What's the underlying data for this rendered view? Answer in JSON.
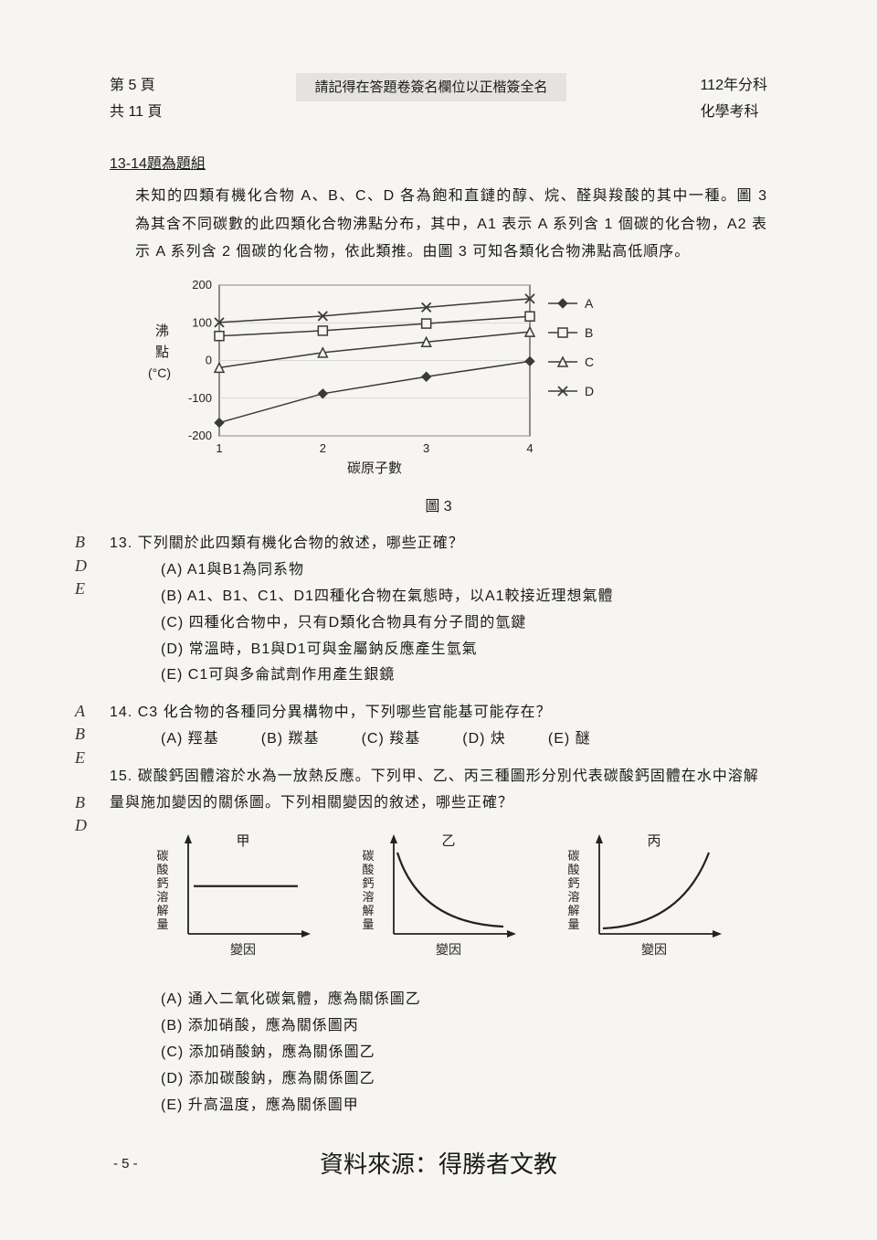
{
  "header": {
    "page_current": "第 5 頁",
    "page_total": "共 11 頁",
    "center": "請記得在答題卷簽名欄位以正楷簽全名",
    "year": "112年分科",
    "subject": "化學考科"
  },
  "grouping": "13-14題為題組",
  "passage": "未知的四類有機化合物 A、B、C、D 各為飽和直鏈的醇、烷、醛與羧酸的其中一種。圖 3 為其含不同碳數的此四類化合物沸點分布，其中，A1 表示 A 系列含 1 個碳的化合物，A2 表示 A 系列含 2 個碳的化合物，依此類推。由圖 3 可知各類化合物沸點高低順序。",
  "chart": {
    "type": "line",
    "title": "圖 3",
    "xlabel": "碳原子數",
    "ylabel_main": "沸",
    "ylabel_sub1": "點",
    "ylabel_sub2": "(°C)",
    "xlim": [
      1,
      4
    ],
    "ylim": [
      -200,
      200
    ],
    "xticks": [
      1,
      2,
      3,
      4
    ],
    "yticks": [
      -200,
      -100,
      0,
      100,
      200
    ],
    "grid_color": "#cfcfcf",
    "axis_color": "#444444",
    "background_color": "transparent",
    "series": {
      "A": {
        "marker": "diamond",
        "color": "#3a3a3a",
        "values": [
          -165,
          -88,
          -43,
          -2
        ]
      },
      "B": {
        "marker": "square",
        "color": "#3a3a3a",
        "values": [
          65,
          79,
          98,
          117
        ]
      },
      "C": {
        "marker": "triangle",
        "color": "#3a3a3a",
        "values": [
          -19,
          21,
          49,
          76
        ]
      },
      "D": {
        "marker": "x",
        "color": "#3a3a3a",
        "values": [
          101,
          118,
          141,
          164
        ]
      }
    },
    "legend": [
      "A",
      "B",
      "C",
      "D"
    ]
  },
  "q13": {
    "annotation": [
      "B",
      "D",
      "E"
    ],
    "num": "13.",
    "text": "下列關於此四類有機化合物的敘述，哪些正確？",
    "opts": [
      "(A) A1與B1為同系物",
      "(B) A1、B1、C1、D1四種化合物在氣態時，以A1較接近理想氣體",
      "(C) 四種化合物中，只有D類化合物具有分子間的氫鍵",
      "(D) 常溫時，B1與D1可與金屬鈉反應產生氫氣",
      "(E) C1可與多侖試劑作用產生銀鏡"
    ]
  },
  "q14": {
    "annotation": [
      "A",
      "B",
      "E"
    ],
    "num": "14.",
    "text": "C3 化合物的各種同分異構物中，下列哪些官能基可能存在？",
    "opts": [
      "(A) 羥基",
      "(B) 羰基",
      "(C) 羧基",
      "(D) 炔",
      "(E) 醚"
    ]
  },
  "q15": {
    "annotation": [
      "B",
      "D"
    ],
    "num": "15.",
    "text": "碳酸鈣固體溶於水為一放熱反應。下列甲、乙、丙三種圖形分別代表碳酸鈣固體在水中溶解量與施加變因的關係圖。下列相關變因的敘述，哪些正確？",
    "opts": [
      "(A) 通入二氧化碳氣體，應為關係圖乙",
      "(B) 添加硝酸，應為關係圖丙",
      "(C) 添加硝酸鈉，應為關係圖乙",
      "(D) 添加碳酸鈉，應為關係圖乙",
      "(E) 升高溫度，應為關係圖甲"
    ],
    "mini_charts": {
      "ylabel": "碳酸鈣溶解量",
      "xlabel": "變因",
      "labels": [
        "甲",
        "乙",
        "丙"
      ],
      "axis_color": "#222",
      "type_a": "flat",
      "type_b": "decay",
      "type_c": "growth"
    }
  },
  "source": "資料來源：得勝者文教",
  "page_footer": "- 5 -"
}
